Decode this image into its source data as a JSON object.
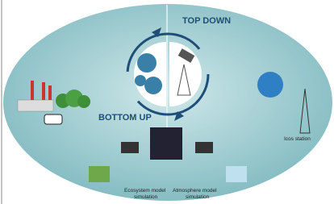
{
  "labels": {
    "top_down": "TOP DOWN",
    "bottom_up": "BOTTOM UP",
    "icos_station": "Icos station",
    "ecosystem_model": [
      "Ecosystem model",
      "simulation"
    ],
    "atmosphere_model": [
      "Atmosphere model",
      "simulation"
    ]
  }
}
